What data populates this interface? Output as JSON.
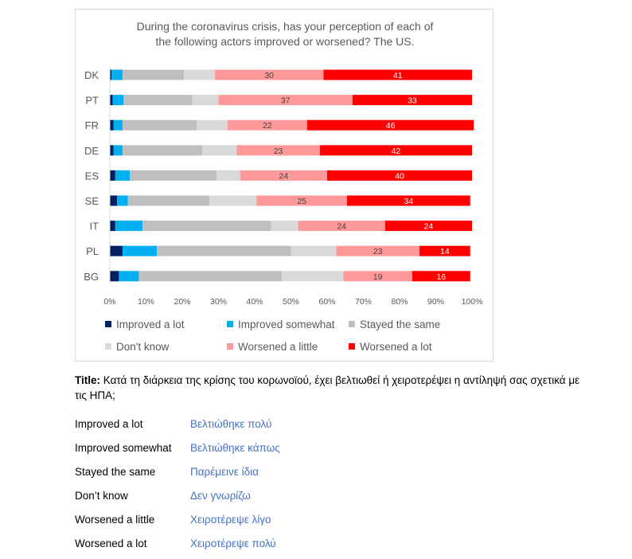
{
  "chart_data": {
    "type": "bar",
    "stacked": true,
    "orientation": "horizontal",
    "title_lines": [
      "During the coronavirus crisis, has your perception of each of",
      "the following actors improved or worsened? The US."
    ],
    "categories": [
      "DK",
      "PT",
      "FR",
      "DE",
      "ES",
      "SE",
      "IT",
      "PL",
      "BG"
    ],
    "xlim": [
      0,
      100
    ],
    "x_ticks": [
      "0%",
      "10%",
      "20%",
      "30%",
      "40%",
      "50%",
      "60%",
      "70%",
      "80%",
      "90%",
      "100%"
    ],
    "grid": false,
    "legend_position": "bottom",
    "series": [
      {
        "name": "Improved a lot",
        "color": "#002060",
        "values": [
          0.5,
          0.8,
          1,
          1,
          1.5,
          2,
          1.5,
          3.5,
          2.5
        ],
        "labels": [
          "",
          "",
          "",
          "",
          "",
          "",
          "",
          "",
          ""
        ]
      },
      {
        "name": "Improved somewhat",
        "color": "#00b0f0",
        "values": [
          3,
          3,
          2.5,
          2.5,
          4,
          3,
          7.5,
          9.5,
          5.5
        ],
        "labels": [
          "",
          "",
          "",
          "",
          "",
          "",
          "",
          "",
          ""
        ]
      },
      {
        "name": "Stayed the same",
        "color": "#bfbfbf",
        "values": [
          17,
          19,
          20.5,
          22,
          24,
          22.5,
          35.5,
          37,
          39.5
        ],
        "labels": [
          "",
          "",
          "",
          "",
          "",
          "",
          "",
          "",
          ""
        ]
      },
      {
        "name": "Don't know",
        "color": "#d9d9d9",
        "values": [
          8.5,
          7.2,
          8.5,
          9.5,
          6.5,
          13,
          7.5,
          12.5,
          17
        ],
        "labels": [
          "",
          "",
          "",
          "",
          "",
          "",
          "",
          "",
          ""
        ]
      },
      {
        "name": "Worsened a little",
        "color": "#ff9999",
        "values": [
          30,
          37,
          22,
          23,
          24,
          25,
          24,
          23,
          19
        ],
        "labels": [
          "30",
          "37",
          "22",
          "23",
          "24",
          "25",
          "24",
          "23",
          "19"
        ]
      },
      {
        "name": "Worsened a lot",
        "color": "#ff0000",
        "values": [
          41,
          33,
          46,
          42,
          40,
          34,
          24,
          14,
          16
        ],
        "labels": [
          "41",
          "33",
          "46",
          "42",
          "40",
          "34",
          "24",
          "14",
          "16"
        ]
      }
    ]
  },
  "note": {
    "label": "Title:",
    "text": " Κατά τη διάρκεια της κρίσης του κορωνοϊού, έχει βελτιωθεί ή χειροτερέψει η αντίληψή σας σχετικά με τις ΗΠΑ;"
  },
  "translations": [
    {
      "en": "Improved a lot",
      "gr": "Βελτιώθηκε πολύ"
    },
    {
      "en": "Improved somewhat",
      "gr": "Βελτιώθηκε κάπως"
    },
    {
      "en": "Stayed the same",
      "gr": "Παρέμεινε ίδια"
    },
    {
      "en": "Don’t know",
      "gr": "Δεν γνωρίζω"
    },
    {
      "en": "Worsened a little",
      "gr": "Χειροτέρεψε λίγο"
    },
    {
      "en": "Worsened a lot",
      "gr": "Χειροτέρεψε πολύ"
    }
  ]
}
